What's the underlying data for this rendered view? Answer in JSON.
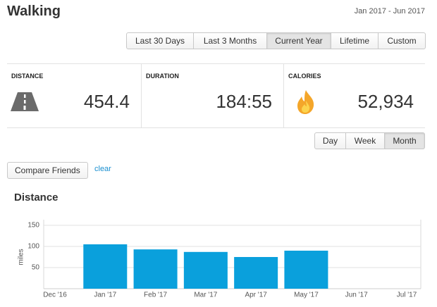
{
  "header": {
    "title": "Walking",
    "date_range": "Jan 2017 - Jun 2017"
  },
  "range_buttons": [
    "Last 30 Days",
    "Last 3 Months",
    "Current Year",
    "Lifetime",
    "Custom"
  ],
  "stats": [
    {
      "label": "DISTANCE",
      "value": "454.4"
    },
    {
      "label": "DURATION",
      "value": "184:55"
    },
    {
      "label": "CALORIES",
      "value": "52,934"
    }
  ],
  "period_buttons": [
    "Day",
    "Week",
    "Month"
  ],
  "compare_button": "Compare Friends",
  "clear_link": "clear",
  "chart_data": {
    "type": "bar",
    "title": "Distance",
    "y_label": "miles",
    "categories": [
      "Dec '16",
      "Jan '17",
      "Feb '17",
      "Mar '17",
      "Apr '17",
      "May '17",
      "Jun '17",
      "Jul '17"
    ],
    "values": [
      null,
      105,
      93,
      87,
      75,
      90,
      null,
      null
    ],
    "color": "#0aa0dc",
    "ylim": [
      0,
      150
    ],
    "yticks": [
      50,
      100,
      150
    ],
    "grid": true
  }
}
